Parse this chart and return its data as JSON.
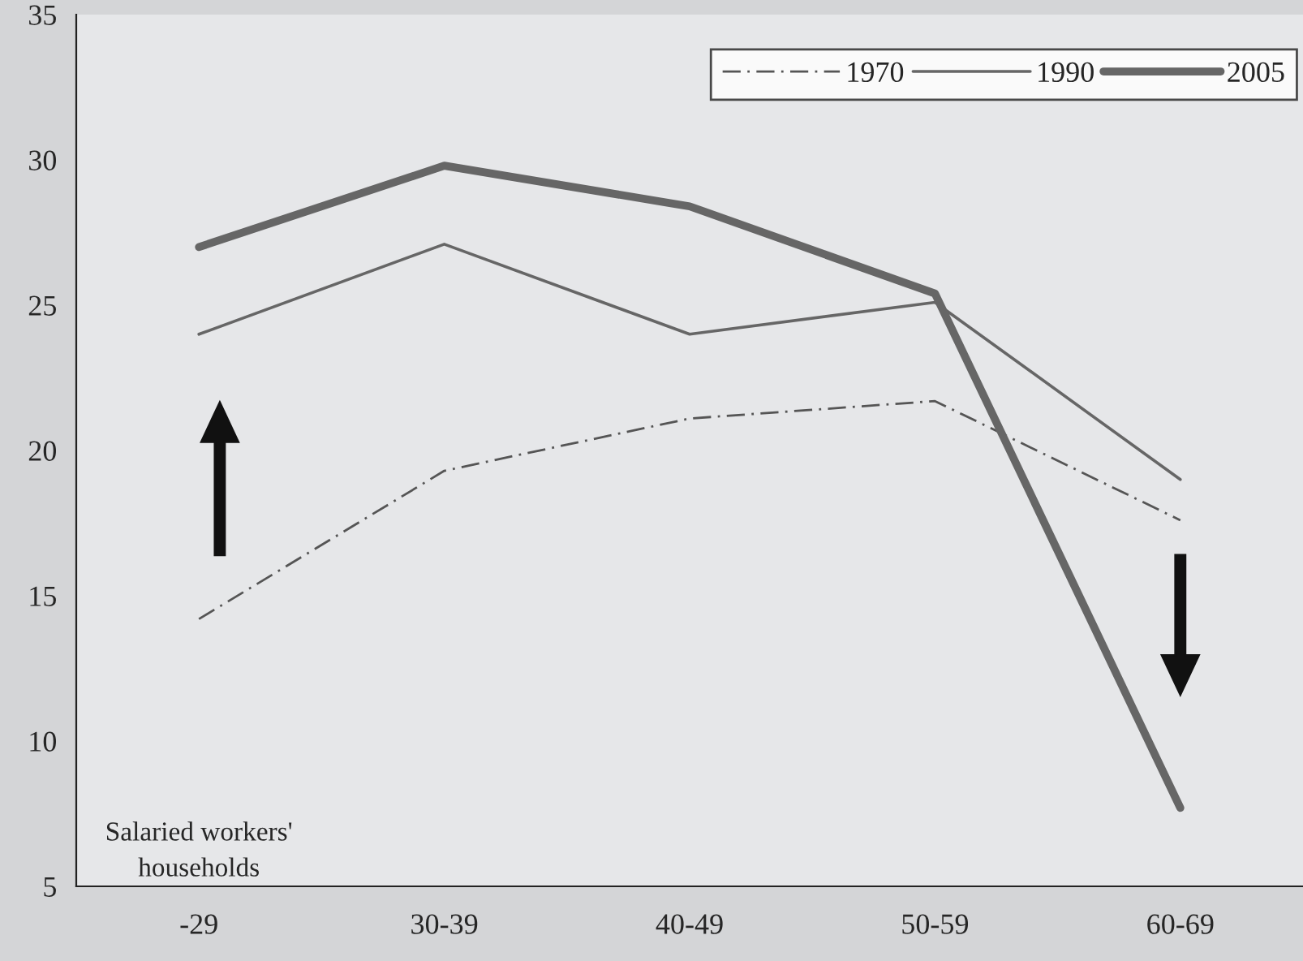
{
  "chart_data": {
    "type": "line",
    "categories": [
      "-29",
      "30-39",
      "40-49",
      "50-59",
      "60-69"
    ],
    "series": [
      {
        "name": "1970",
        "color": "#555555",
        "line_style": "dashed",
        "values": [
          14.2,
          19.3,
          21.1,
          21.7,
          17.6
        ]
      },
      {
        "name": "1990",
        "color": "#666666",
        "line_style": "solid",
        "values": [
          24.0,
          27.1,
          24.0,
          25.1,
          19.0
        ]
      },
      {
        "name": "2005",
        "color": "#666666",
        "line_style": "solid",
        "values": [
          27.0,
          29.8,
          28.4,
          25.4,
          7.7
        ]
      }
    ],
    "ylim": [
      5,
      35
    ],
    "yticks": [
      5,
      10,
      15,
      20,
      25,
      30,
      35
    ],
    "grid": false,
    "legend": "top right",
    "marker": "none",
    "annotations": [
      "Salaried workers'\nhouseholds"
    ]
  }
}
